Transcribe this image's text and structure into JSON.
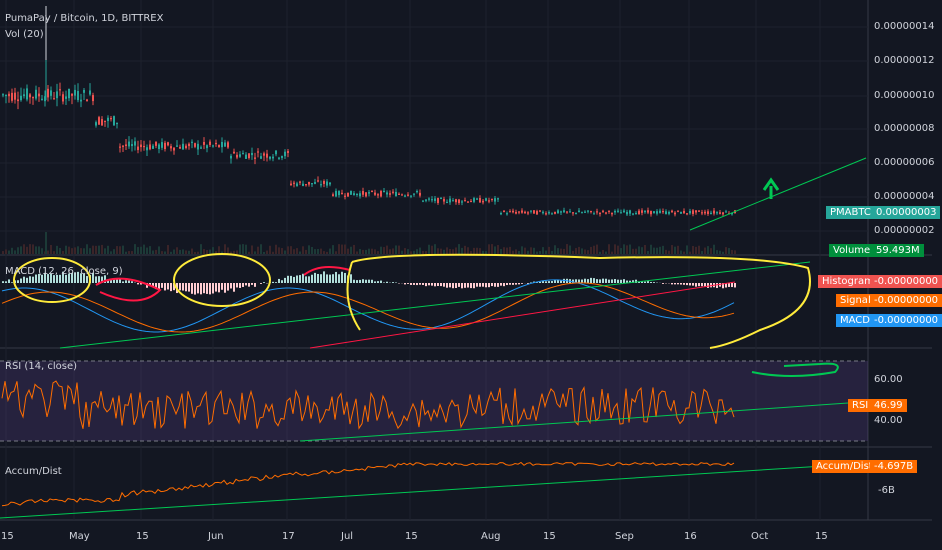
{
  "header": {
    "symbol_title": "PumaPay / Bitcoin, 1D, BITTREX",
    "volume_title": "Vol (20)"
  },
  "price_axis": [
    "0.00000014",
    "0.00000012",
    "0.00000010",
    "0.00000008",
    "0.00000006",
    "0.00000004",
    "0.00000002"
  ],
  "tags": {
    "price_name": "PMABTC",
    "price_value": "0.00000003",
    "volume_name": "Volume",
    "volume_value": "59.493M",
    "hist_name": "Histogram",
    "hist_value": "-0.00000000",
    "signal_name": "Signal",
    "signal_value": "-0.00000000",
    "macd_name": "MACD",
    "macd_value": "-0.00000000",
    "rsi_name": "RSI",
    "rsi_value": "46.99",
    "ad_name": "Accum/Dist",
    "ad_value": "-4.697B"
  },
  "macd_title": "MACD (12, 26, close, 9)",
  "rsi_title": "RSI (14, close)",
  "rsi_axis": [
    "60.00",
    "40.00"
  ],
  "ad_title": "Accum/Dist",
  "ad_axis": [
    "-6B"
  ],
  "time_axis": [
    "15",
    "May",
    "15",
    "Jun",
    "17",
    "Jul",
    "15",
    "Aug",
    "15",
    "Sep",
    "16",
    "Oct",
    "15"
  ],
  "colors": {
    "up": "#26a69a",
    "down": "#ef5350",
    "background": "#131722",
    "drawing_green": "#00c853",
    "drawing_yellow": "#ffeb3b",
    "drawing_red": "#ff1744",
    "rsi": "#ff6d00",
    "macd": "#2196f3",
    "signal": "#ff6d00"
  },
  "chart_data": [
    {
      "type": "candlestick",
      "title": "PumaPay / Bitcoin, 1D, BITTREX",
      "x_ticks": [
        "15",
        "May",
        "15",
        "Jun",
        "17",
        "Jul",
        "15",
        "Aug",
        "15",
        "Sep",
        "16",
        "Oct",
        "15"
      ],
      "ylim": [
        1e-08,
        1.5e-07
      ],
      "price_phases": [
        {
          "period": "mid Apr - early May",
          "close": 1e-07
        },
        {
          "period": "May",
          "close": 8e-08
        },
        {
          "period": "late May - mid Jun",
          "close": 7e-08
        },
        {
          "period": "late Jun",
          "close": 5e-08
        },
        {
          "period": "Jul",
          "close": 4.5e-08
        },
        {
          "period": "Aug - late Sep",
          "close": 3e-08
        }
      ],
      "last_price": 3e-08
    },
    {
      "type": "bar",
      "title": "Vol (20)",
      "last_value": "59.493M"
    },
    {
      "type": "line",
      "title": "MACD (12, 26, close, 9)",
      "series": [
        {
          "name": "Histogram"
        },
        {
          "name": "Signal"
        },
        {
          "name": "MACD"
        }
      ]
    },
    {
      "type": "line",
      "title": "RSI (14, close)",
      "levels": [
        70,
        30
      ],
      "ticks": [
        60,
        40
      ],
      "last_value": 46.99
    },
    {
      "type": "line",
      "title": "Accum/Dist",
      "ticks": [
        "-6B"
      ],
      "last_value": "-4.697B"
    }
  ]
}
